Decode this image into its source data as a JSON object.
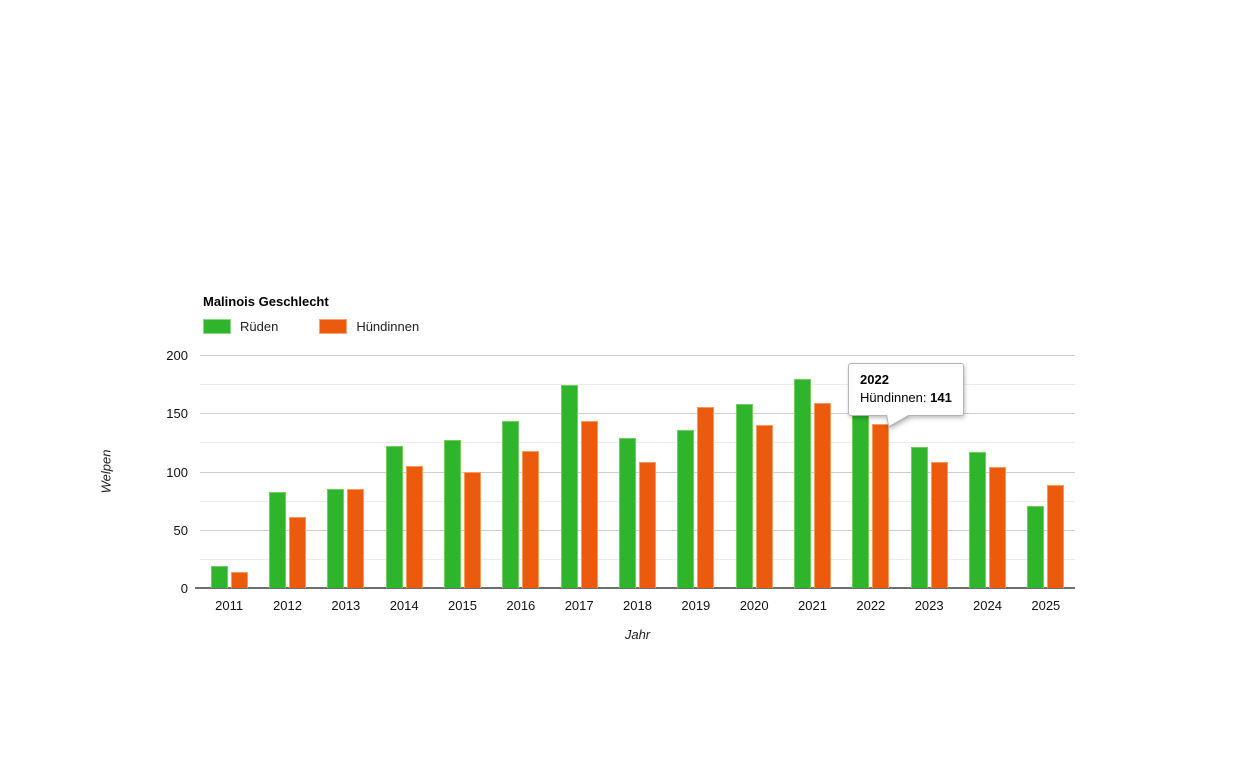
{
  "chart": {
    "legend_title": "Malinois Geschlecht",
    "x_axis_title": "Jahr",
    "y_axis_title": "Welpen",
    "tooltip": {
      "title": "2022",
      "series_label": "Hündinnen:",
      "value": "141"
    }
  },
  "chart_data": {
    "type": "bar",
    "title": "Malinois Geschlecht",
    "categories": [
      "2011",
      "2012",
      "2013",
      "2014",
      "2015",
      "2016",
      "2017",
      "2018",
      "2019",
      "2020",
      "2021",
      "2022",
      "2023",
      "2024",
      "2025"
    ],
    "series": [
      {
        "name": "Rüden",
        "color": "#2eb52b",
        "border_color": "#6fce5e",
        "values": [
          19,
          82,
          85,
          122,
          127,
          143,
          174,
          129,
          136,
          158,
          179,
          152,
          121,
          117,
          70
        ]
      },
      {
        "name": "Hündinnen",
        "color": "#ec5a0e",
        "border_color": "#f59b5c",
        "values": [
          14,
          61,
          85,
          105,
          100,
          118,
          143,
          108,
          155,
          140,
          159,
          141,
          108,
          104,
          88
        ]
      }
    ],
    "xlabel": "Jahr",
    "ylabel": "Welpen",
    "ylim": [
      0,
      200
    ],
    "yticks": [
      0,
      50,
      100,
      150,
      200
    ],
    "minor_grid_step": 25,
    "grid": true,
    "legend_position": "top-left",
    "tooltip_shown": {
      "category": "2022",
      "series": "Hündinnen",
      "value": 141
    }
  }
}
